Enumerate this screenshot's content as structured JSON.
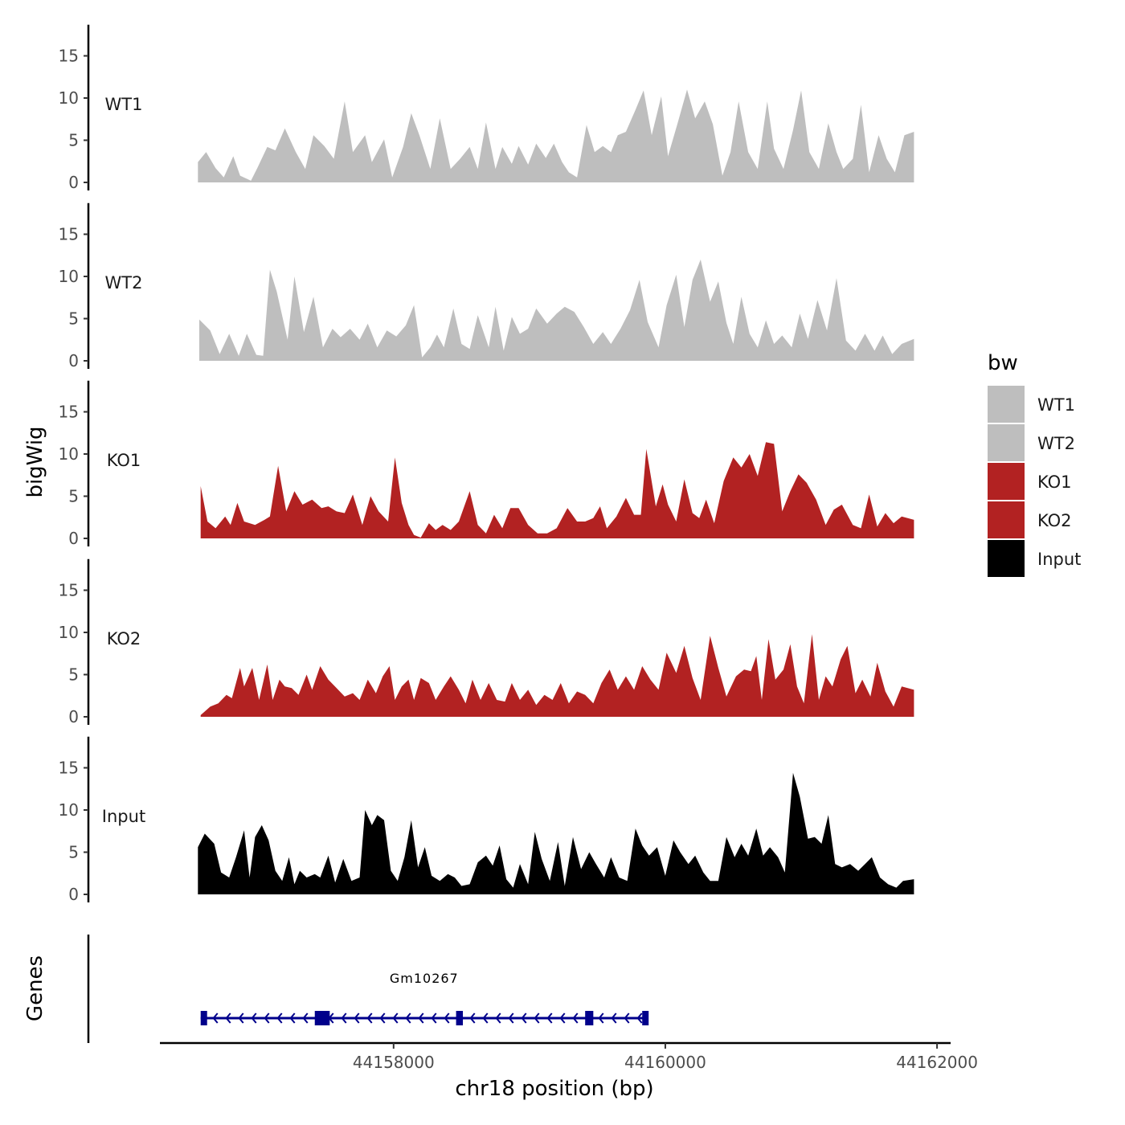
{
  "chart_data": {
    "type": "area",
    "y_axis_title": "bigWig",
    "gene_axis_title": "Genes",
    "xlabel": "chr18 position (bp)",
    "xlim": [
      44156280,
      44162100
    ],
    "x_ticks": [
      {
        "value": 44158000,
        "label": "44158000"
      },
      {
        "value": 44160000,
        "label": "44160000"
      },
      {
        "value": 44162000,
        "label": "44162000"
      }
    ],
    "ylim": [
      0,
      18.5
    ],
    "y_ticks": [
      {
        "value": 0,
        "label": "0"
      },
      {
        "value": 5,
        "label": "5"
      },
      {
        "value": 10,
        "label": "10"
      },
      {
        "value": 15,
        "label": "15"
      }
    ],
    "legend": {
      "title": "bw",
      "items": [
        {
          "label": "WT1",
          "color": "#bebebe"
        },
        {
          "label": "WT2",
          "color": "#bebebe"
        },
        {
          "label": "KO1",
          "color": "#b22222"
        },
        {
          "label": "KO2",
          "color": "#b22222"
        },
        {
          "label": "Input",
          "color": "#000000"
        }
      ]
    },
    "tracks": [
      {
        "name": "WT1",
        "color": "#bebebe",
        "x": [
          44156560,
          44156620,
          44156690,
          44156750,
          44156820,
          44156870,
          44156950,
          44157000,
          44157070,
          44157130,
          44157200,
          44157280,
          44157350,
          44157410,
          44157490,
          44157560,
          44157640,
          44157700,
          44157790,
          44157840,
          44157930,
          44157990,
          44158070,
          44158130,
          44158190,
          44158270,
          44158340,
          44158420,
          44158490,
          44158560,
          44158620,
          44158680,
          44158750,
          44158800,
          44158870,
          44158920,
          44158990,
          44159050,
          44159120,
          44159180,
          44159240,
          44159290,
          44159350,
          44159420,
          44159480,
          44159540,
          44159600,
          44159650,
          44159710,
          44159780,
          44159840,
          44159900,
          44159970,
          44160020,
          44160090,
          44160160,
          44160220,
          44160290,
          44160350,
          44160420,
          44160480,
          44160540,
          44160610,
          44160680,
          44160750,
          44160800,
          44160870,
          44160940,
          44161000,
          44161060,
          44161130,
          44161200,
          44161260,
          44161310,
          44161380,
          44161440,
          44161500,
          44161570,
          44161630,
          44161690,
          44161760,
          44161830
        ],
        "values": [
          2.4,
          3.6,
          1.7,
          0.6,
          3.1,
          0.8,
          0.2,
          1.8,
          4.2,
          3.8,
          6.4,
          3.6,
          1.6,
          5.6,
          4.3,
          2.8,
          9.6,
          3.6,
          5.6,
          2.4,
          5.1,
          0.6,
          4.2,
          8.2,
          5.6,
          1.6,
          7.6,
          1.6,
          2.8,
          4.2,
          1.6,
          7.1,
          1.6,
          4.2,
          2.2,
          4.3,
          2.1,
          4.6,
          2.9,
          4.6,
          2.4,
          1.2,
          0.6,
          6.8,
          3.6,
          4.3,
          3.6,
          5.6,
          6.0,
          8.6,
          10.9,
          5.6,
          10.2,
          3.1,
          7.0,
          11.0,
          7.6,
          9.6,
          6.9,
          0.8,
          3.6,
          9.6,
          3.6,
          1.6,
          9.6,
          4.0,
          1.6,
          6.2,
          10.9,
          3.6,
          1.6,
          7.0,
          3.6,
          1.6,
          2.8,
          9.2,
          1.2,
          5.6,
          2.8,
          1.2,
          5.6,
          6.0
        ]
      },
      {
        "name": "WT2",
        "color": "#bebebe",
        "x": [
          44156570,
          44156650,
          44156720,
          44156790,
          44156860,
          44156920,
          44156990,
          44157040,
          44157090,
          44157140,
          44157220,
          44157270,
          44157340,
          44157410,
          44157480,
          44157550,
          44157610,
          44157680,
          44157750,
          44157810,
          44157880,
          44157950,
          44158020,
          44158090,
          44158150,
          44158210,
          44158270,
          44158320,
          44158370,
          44158440,
          44158500,
          44158560,
          44158620,
          44158700,
          44158750,
          44158810,
          44158870,
          44158930,
          44158990,
          44159050,
          44159130,
          44159200,
          44159260,
          44159330,
          44159400,
          44159470,
          44159540,
          44159600,
          44159670,
          44159740,
          44159810,
          44159870,
          44159950,
          44160010,
          44160080,
          44160140,
          44160200,
          44160260,
          44160330,
          44160390,
          44160450,
          44160500,
          44160560,
          44160620,
          44160680,
          44160740,
          44160800,
          44160860,
          44160930,
          44160990,
          44161050,
          44161120,
          44161190,
          44161260,
          44161330,
          44161400,
          44161470,
          44161540,
          44161600,
          44161670,
          44161740,
          44161830
        ],
        "values": [
          4.9,
          3.6,
          0.8,
          3.2,
          0.6,
          3.2,
          0.7,
          0.6,
          10.8,
          8.2,
          2.5,
          10.0,
          3.4,
          7.6,
          1.6,
          3.8,
          2.8,
          3.8,
          2.5,
          4.4,
          1.6,
          3.6,
          2.9,
          4.2,
          6.6,
          0.4,
          1.6,
          3.1,
          1.6,
          6.2,
          2.0,
          1.4,
          5.4,
          1.6,
          6.4,
          1.2,
          5.2,
          3.2,
          3.8,
          6.2,
          4.4,
          5.6,
          6.4,
          5.8,
          4.0,
          2.0,
          3.4,
          2.0,
          3.8,
          6.0,
          9.6,
          4.6,
          1.6,
          6.6,
          10.2,
          4.0,
          9.6,
          12.0,
          7.0,
          9.4,
          4.5,
          2.0,
          7.6,
          3.2,
          1.6,
          4.8,
          2.0,
          3.0,
          1.6,
          5.6,
          2.6,
          7.2,
          3.6,
          9.8,
          2.4,
          1.2,
          3.2,
          1.2,
          3.0,
          0.8,
          2.0,
          2.6
        ]
      },
      {
        "name": "KO1",
        "color": "#b22222",
        "x": [
          44156580,
          44156630,
          44156690,
          44156760,
          44156800,
          44156850,
          44156900,
          44156980,
          44157050,
          44157090,
          44157150,
          44157210,
          44157270,
          44157330,
          44157400,
          44157470,
          44157520,
          44157580,
          44157640,
          44157700,
          44157770,
          44157830,
          44157890,
          44157960,
          44158010,
          44158060,
          44158110,
          44158150,
          44158200,
          44158260,
          44158310,
          44158360,
          44158420,
          44158480,
          44158560,
          44158620,
          44158680,
          44158740,
          44158800,
          44158860,
          44158920,
          44158990,
          44159060,
          44159130,
          44159200,
          44159280,
          44159350,
          44159410,
          44159470,
          44159520,
          44159570,
          44159640,
          44159710,
          44159770,
          44159820,
          44159860,
          44159930,
          44159980,
          44160020,
          44160080,
          44160140,
          44160200,
          44160250,
          44160300,
          44160360,
          44160430,
          44160500,
          44160560,
          44160620,
          44160680,
          44160740,
          44160800,
          44160860,
          44160920,
          44160980,
          44161040,
          44161110,
          44161180,
          44161240,
          44161300,
          44161380,
          44161440,
          44161500,
          44161560,
          44161620,
          44161680,
          44161740,
          44161830
        ],
        "values": [
          6.2,
          2.0,
          1.2,
          2.6,
          1.6,
          4.2,
          2.0,
          1.6,
          2.2,
          2.6,
          8.6,
          3.2,
          5.6,
          4.0,
          4.6,
          3.6,
          3.8,
          3.2,
          3.0,
          5.2,
          1.6,
          5.0,
          3.2,
          2.0,
          9.6,
          4.2,
          1.6,
          0.4,
          0.1,
          1.8,
          1.0,
          1.6,
          1.0,
          2.0,
          5.6,
          1.6,
          0.6,
          2.8,
          1.2,
          3.6,
          3.6,
          1.6,
          0.6,
          0.6,
          1.2,
          3.6,
          2.0,
          2.0,
          2.4,
          3.8,
          1.2,
          2.6,
          4.8,
          2.8,
          2.8,
          10.6,
          3.8,
          6.4,
          4.0,
          2.0,
          7.0,
          3.0,
          2.4,
          4.6,
          1.8,
          6.8,
          9.6,
          8.4,
          10.0,
          7.4,
          11.4,
          11.2,
          3.2,
          5.6,
          7.6,
          6.6,
          4.6,
          1.6,
          3.4,
          4.0,
          1.6,
          1.2,
          5.2,
          1.4,
          3.0,
          1.8,
          2.6,
          2.2
        ]
      },
      {
        "name": "KO2",
        "color": "#b22222",
        "x": [
          44156580,
          44156650,
          44156710,
          44156770,
          44156810,
          44156870,
          44156900,
          44156960,
          44157010,
          44157070,
          44157110,
          44157160,
          44157200,
          44157250,
          44157300,
          44157360,
          44157400,
          44157460,
          44157520,
          44157580,
          44157640,
          44157700,
          44157750,
          44157810,
          44157870,
          44157920,
          44157970,
          44158010,
          44158060,
          44158110,
          44158150,
          44158200,
          44158260,
          44158310,
          44158370,
          44158420,
          44158480,
          44158530,
          44158580,
          44158640,
          44158700,
          44158760,
          44158820,
          44158870,
          44158930,
          44158990,
          44159050,
          44159110,
          44159170,
          44159230,
          44159290,
          44159350,
          44159410,
          44159470,
          44159530,
          44159590,
          44159650,
          44159710,
          44159770,
          44159830,
          44159890,
          44159950,
          44160010,
          44160080,
          44160140,
          44160200,
          44160260,
          44160330,
          44160390,
          44160450,
          44160520,
          44160580,
          44160630,
          44160670,
          44160710,
          44160760,
          44160810,
          44160870,
          44160920,
          44160970,
          44161020,
          44161080,
          44161130,
          44161180,
          44161230,
          44161290,
          44161340,
          44161400,
          44161450,
          44161510,
          44161560,
          44161620,
          44161680,
          44161740,
          44161830
        ],
        "values": [
          0.2,
          1.2,
          1.6,
          2.6,
          2.2,
          5.8,
          3.6,
          5.8,
          2.0,
          6.2,
          2.0,
          4.4,
          3.6,
          3.4,
          2.6,
          5.0,
          3.2,
          6.0,
          4.4,
          3.4,
          2.4,
          2.8,
          2.0,
          4.4,
          2.8,
          4.8,
          6.0,
          2.0,
          3.6,
          4.4,
          2.0,
          4.6,
          4.0,
          2.0,
          3.6,
          4.8,
          3.2,
          1.6,
          4.4,
          2.0,
          4.0,
          2.0,
          1.8,
          4.0,
          2.0,
          3.2,
          1.4,
          2.6,
          2.0,
          4.0,
          1.6,
          3.0,
          2.6,
          1.6,
          4.0,
          5.6,
          3.2,
          4.8,
          3.2,
          6.0,
          4.4,
          3.2,
          7.6,
          5.2,
          8.4,
          4.6,
          2.0,
          9.6,
          5.8,
          2.4,
          4.8,
          5.6,
          5.4,
          7.2,
          2.0,
          9.2,
          4.4,
          5.6,
          8.6,
          3.6,
          1.6,
          9.8,
          2.0,
          4.8,
          3.6,
          6.8,
          8.4,
          2.8,
          4.4,
          2.4,
          6.4,
          3.0,
          1.2,
          3.6,
          3.2
        ]
      },
      {
        "name": "Input",
        "color": "#000000",
        "x": [
          44156560,
          44156610,
          44156680,
          44156730,
          44156790,
          44156840,
          44156900,
          44156940,
          44156980,
          44157030,
          44157080,
          44157130,
          44157180,
          44157230,
          44157270,
          44157310,
          44157360,
          44157420,
          44157460,
          44157520,
          44157570,
          44157630,
          44157690,
          44157750,
          44157790,
          44157840,
          44157880,
          44157930,
          44157980,
          44158030,
          44158080,
          44158130,
          44158180,
          44158230,
          44158280,
          44158340,
          44158400,
          44158450,
          44158500,
          44158560,
          44158620,
          44158680,
          44158730,
          44158780,
          44158830,
          44158880,
          44158930,
          44158990,
          44159040,
          44159090,
          44159150,
          44159210,
          44159260,
          44159320,
          44159380,
          44159440,
          44159490,
          44159550,
          44159600,
          44159660,
          44159720,
          44159780,
          44159830,
          44159880,
          44159940,
          44160000,
          44160060,
          44160110,
          44160170,
          44160220,
          44160280,
          44160330,
          44160390,
          44160450,
          44160510,
          44160560,
          44160610,
          44160670,
          44160720,
          44160770,
          44160830,
          44160880,
          44160940,
          44160990,
          44161050,
          44161100,
          44161150,
          44161200,
          44161250,
          44161300,
          44161360,
          44161420,
          44161470,
          44161520,
          44161580,
          44161640,
          44161700,
          44161750,
          44161830
        ],
        "values": [
          5.6,
          7.2,
          6.0,
          2.6,
          2.0,
          4.4,
          7.6,
          2.0,
          6.8,
          8.2,
          6.4,
          2.8,
          1.6,
          4.4,
          1.2,
          2.8,
          2.0,
          2.4,
          2.0,
          4.6,
          1.4,
          4.2,
          1.6,
          2.0,
          10.0,
          8.2,
          9.4,
          8.8,
          2.8,
          1.6,
          4.4,
          8.8,
          3.2,
          5.6,
          2.2,
          1.6,
          2.4,
          2.0,
          1.0,
          1.2,
          3.8,
          4.6,
          3.4,
          5.8,
          1.8,
          0.8,
          3.6,
          1.2,
          7.4,
          4.2,
          1.6,
          6.2,
          1.0,
          6.8,
          3.0,
          5.0,
          3.6,
          2.0,
          4.4,
          2.0,
          1.6,
          7.8,
          5.8,
          4.6,
          5.6,
          2.2,
          6.4,
          5.0,
          3.6,
          4.6,
          2.6,
          1.6,
          1.6,
          6.8,
          4.4,
          6.0,
          4.6,
          7.8,
          4.6,
          5.6,
          4.4,
          2.6,
          14.4,
          11.6,
          6.6,
          6.8,
          6.0,
          9.4,
          3.6,
          3.2,
          3.6,
          2.8,
          3.6,
          4.4,
          2.0,
          1.2,
          0.8,
          1.6,
          1.8
        ]
      }
    ],
    "gene": {
      "name": "Gm10267",
      "strand": "-",
      "start": 44156580,
      "end": 44159870,
      "color": "#00008b",
      "exons": [
        {
          "start": 44156580,
          "end": 44156620
        },
        {
          "start": 44157420,
          "end": 44157530
        },
        {
          "start": 44158460,
          "end": 44158510
        },
        {
          "start": 44159410,
          "end": 44159470
        },
        {
          "start": 44159830,
          "end": 44159870
        }
      ]
    }
  }
}
